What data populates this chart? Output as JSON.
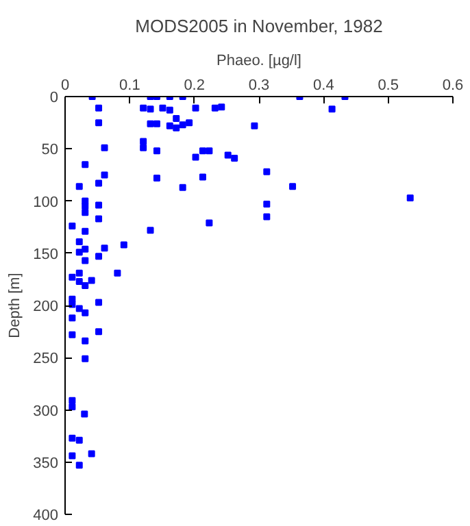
{
  "chart_data": {
    "type": "scatter",
    "title": "MODS2005 in November, 1982",
    "xlabel": "Phaeo. [µg/l]",
    "ylabel": "Depth [m]",
    "x": [
      0.042,
      0.052,
      0.132,
      0.142,
      0.162,
      0.182,
      0.121,
      0.132,
      0.151,
      0.162,
      0.202,
      0.232,
      0.242,
      0.172,
      0.052,
      0.132,
      0.142,
      0.162,
      0.172,
      0.182,
      0.192,
      0.293,
      0.121,
      0.121,
      0.061,
      0.142,
      0.213,
      0.223,
      0.202,
      0.252,
      0.262,
      0.031,
      0.061,
      0.052,
      0.142,
      0.213,
      0.022,
      0.182,
      0.031,
      0.031,
      0.052,
      0.031,
      0.052,
      0.011,
      0.223,
      0.363,
      0.433,
      0.413,
      0.312,
      0.352,
      0.312,
      0.312,
      0.534,
      0.031,
      0.132,
      0.022,
      0.031,
      0.061,
      0.091,
      0.022,
      0.052,
      0.031,
      0.011,
      0.022,
      0.022,
      0.041,
      0.081,
      0.031,
      0.011,
      0.011,
      0.022,
      0.052,
      0.031,
      0.011,
      0.011,
      0.052,
      0.031,
      0.031,
      0.011,
      0.011,
      0.03,
      0.011,
      0.022,
      0.041,
      0.011,
      0.022
    ],
    "values": [
      0,
      11,
      0,
      0,
      0,
      0,
      11,
      12,
      11,
      13,
      11,
      11,
      10,
      21,
      25,
      26,
      26,
      28,
      30,
      27,
      25,
      28,
      43,
      49,
      49,
      52,
      52,
      52,
      58,
      56,
      59,
      65,
      75,
      83,
      78,
      77,
      86,
      87,
      100,
      105,
      104,
      111,
      117,
      124,
      121,
      0,
      0,
      12,
      72,
      86,
      103,
      115,
      97,
      129,
      128,
      139,
      146,
      145,
      142,
      149,
      153,
      157,
      173,
      169,
      177,
      176,
      169,
      181,
      194,
      199,
      203,
      197,
      207,
      212,
      228,
      225,
      234,
      251,
      291,
      297,
      304,
      327,
      329,
      342,
      344,
      353
    ],
    "color": "#0000ff",
    "marker": "square",
    "xlim": [
      0,
      0.6
    ],
    "xticks": [
      0,
      0.1,
      0.2,
      0.3,
      0.4,
      0.5,
      0.6
    ],
    "ylim": [
      400,
      0
    ],
    "yticks": [
      0,
      50,
      100,
      150,
      200,
      250,
      300,
      350,
      400
    ],
    "grid": false
  }
}
